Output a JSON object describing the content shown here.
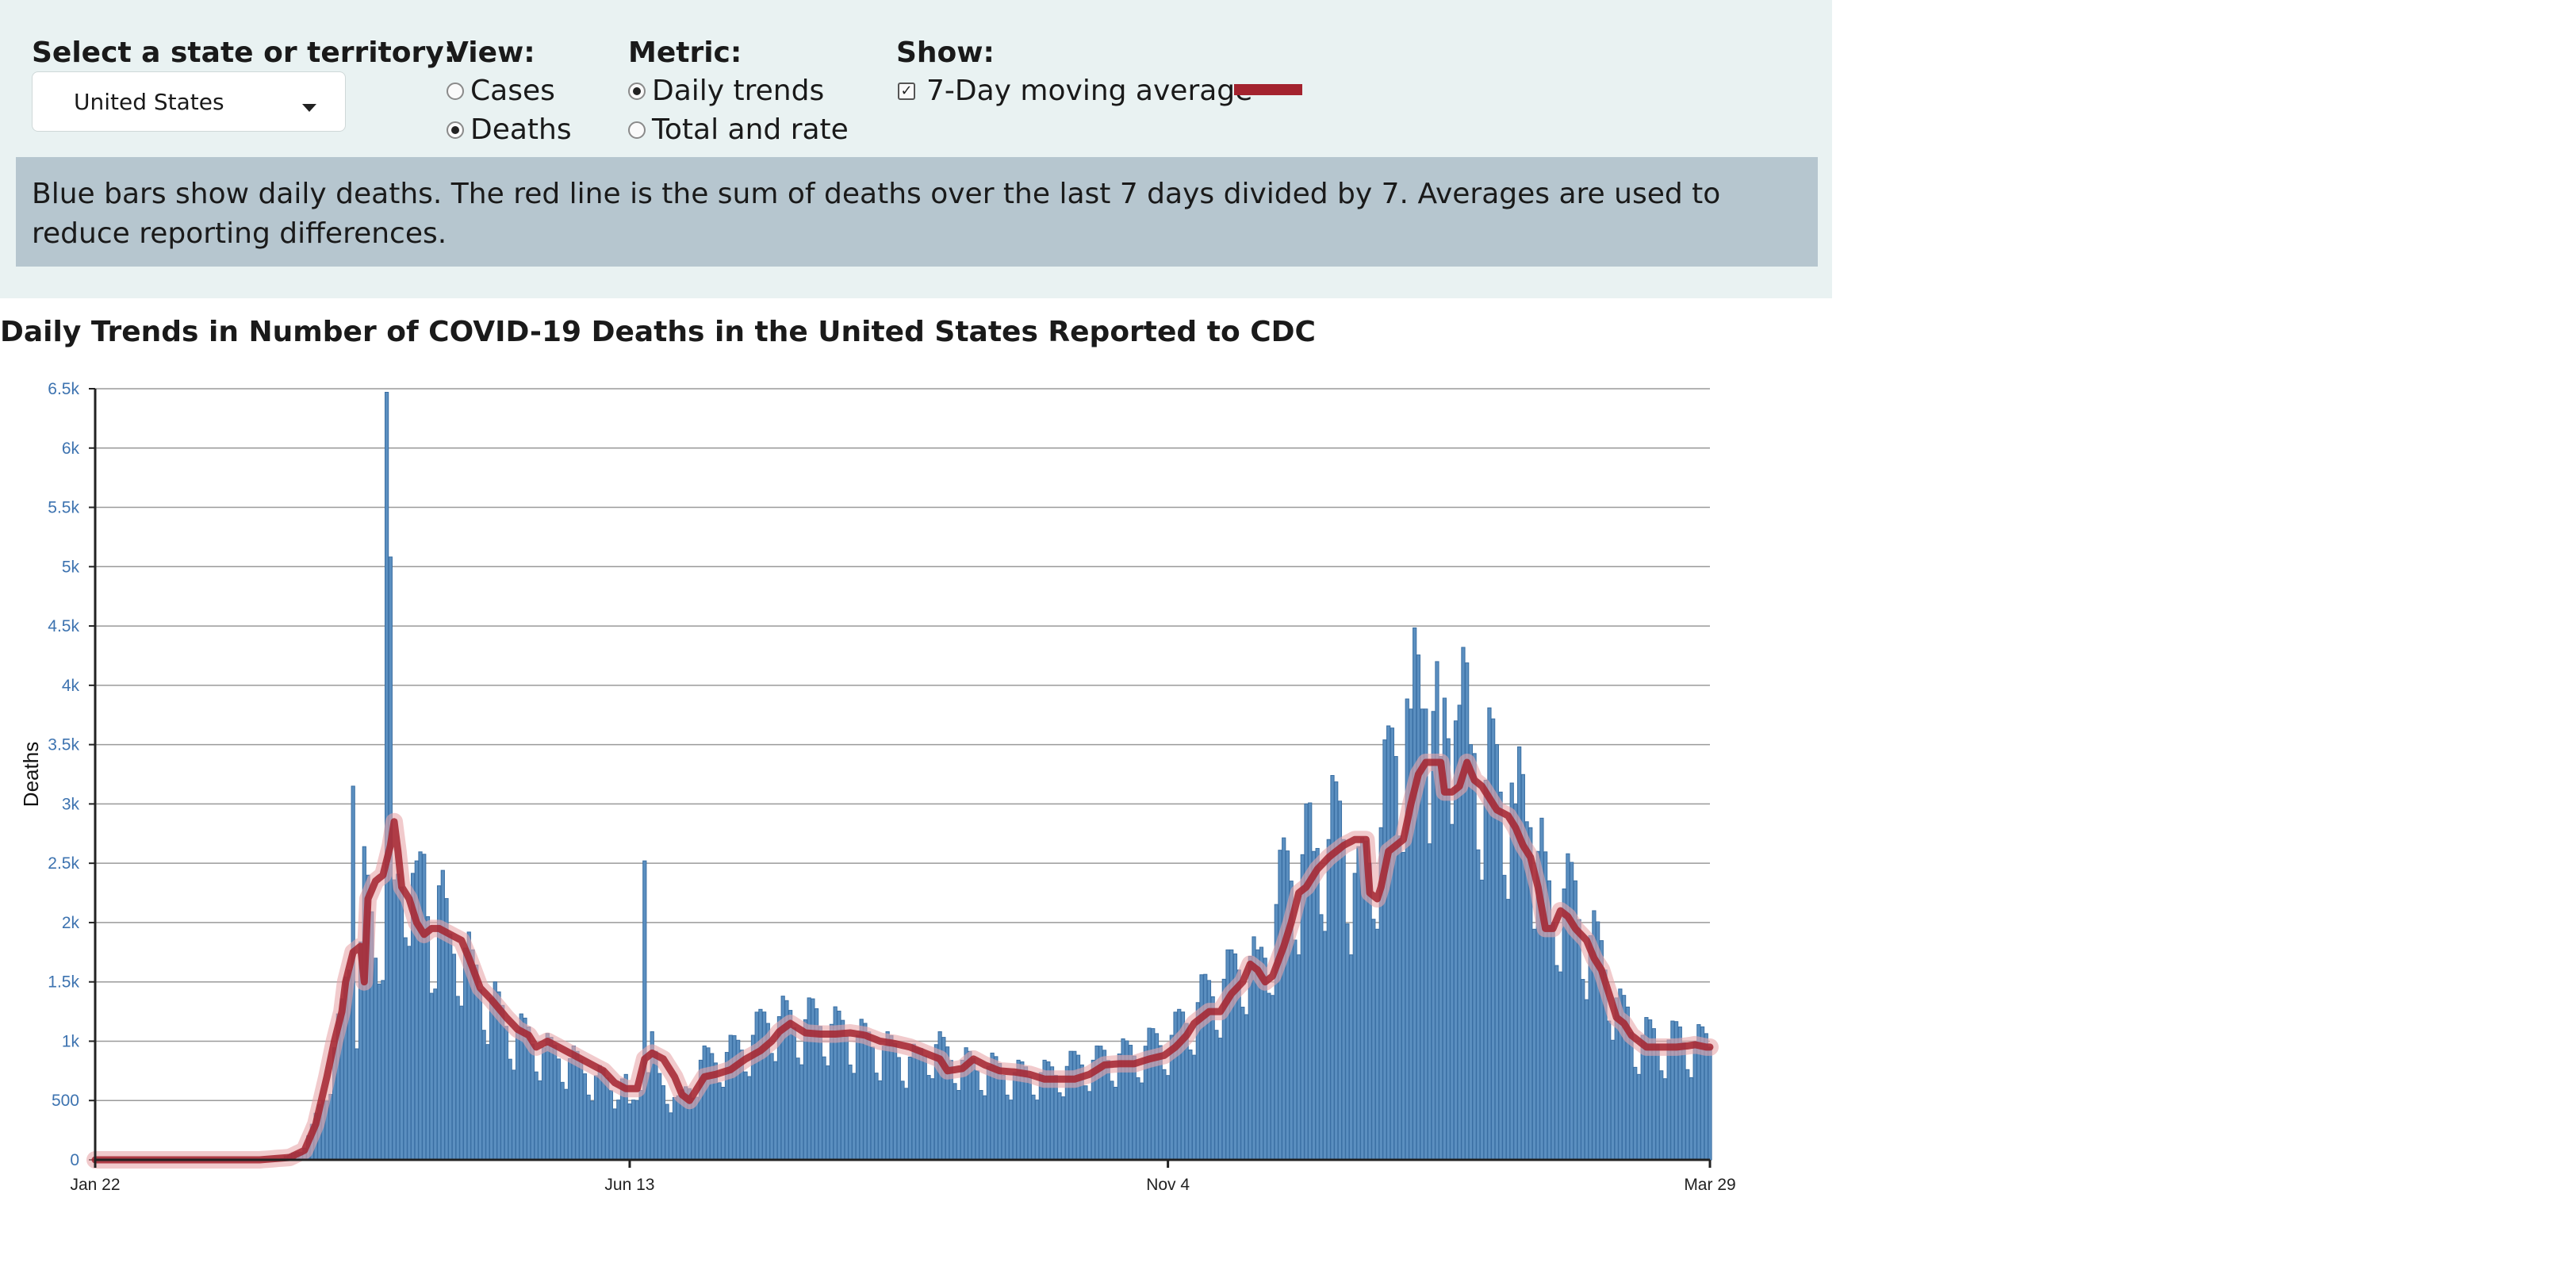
{
  "controls": {
    "state_label": "Select a state or territory:",
    "state_value": "United States",
    "view_label": "View:",
    "view_options": [
      "Cases",
      "Deaths"
    ],
    "view_selected": "Deaths",
    "metric_label": "Metric:",
    "metric_options": [
      "Daily trends",
      "Total and rate"
    ],
    "metric_selected": "Daily trends",
    "show_label": "Show:",
    "show_option": "7-Day moving average",
    "show_checked": true
  },
  "note": "Blue bars show daily deaths. The red line is the sum of deaths over the last 7 days divided by 7. Averages are used to reduce reporting differences.",
  "colors": {
    "bar": "#5b8fc0",
    "bar_stroke": "#3a6fa3",
    "line": "#a3232e",
    "line_halo": "#e8a6aa",
    "axis_text": "#3d73b0",
    "grid": "#9a9a9a",
    "panel": "#e9f2f2",
    "note_bg": "#b6c6cf"
  },
  "chart_data": {
    "type": "bar",
    "title": "Daily Trends in Number of COVID-19 Deaths in the United States Reported to CDC",
    "ylabel": "Deaths",
    "xlabel": "",
    "ylim": [
      0,
      6500
    ],
    "y_ticks": [
      0,
      500,
      1000,
      1500,
      2000,
      2500,
      3000,
      3500,
      4000,
      4500,
      5000,
      5500,
      6000,
      6500
    ],
    "y_tick_labels": [
      "0",
      "500",
      "1k",
      "1.5k",
      "2k",
      "2.5k",
      "3k",
      "3.5k",
      "4k",
      "4.5k",
      "5k",
      "5.5k",
      "6k",
      "6.5k"
    ],
    "x_start": "Jan 22",
    "x_end": "Mar 29",
    "x_ticks": [
      {
        "label": "Jan 22",
        "day": 0
      },
      {
        "label": "Jun 13",
        "day": 143
      },
      {
        "label": "Nov 4",
        "day": 287
      },
      {
        "label": "Mar 29",
        "day": 432
      }
    ],
    "grid": true,
    "series": [
      {
        "name": "Daily deaths",
        "type": "bar"
      },
      {
        "name": "7-Day moving average",
        "type": "line"
      }
    ],
    "deaths_keyframes": [
      [
        0,
        0
      ],
      [
        44,
        0
      ],
      [
        50,
        10
      ],
      [
        55,
        80
      ],
      [
        58,
        250
      ],
      [
        61,
        500
      ],
      [
        64,
        900
      ],
      [
        66,
        1150
      ],
      [
        68,
        1600
      ],
      [
        69,
        3150
      ],
      [
        70,
        1300
      ],
      [
        72,
        2200
      ],
      [
        75,
        1700
      ],
      [
        77,
        2100
      ],
      [
        78,
        6470
      ],
      [
        80,
        2000
      ],
      [
        82,
        2300
      ],
      [
        84,
        2500
      ],
      [
        86,
        2100
      ],
      [
        88,
        2300
      ],
      [
        90,
        1800
      ],
      [
        92,
        2200
      ],
      [
        95,
        1700
      ],
      [
        98,
        1800
      ],
      [
        101,
        1500
      ],
      [
        104,
        1400
      ],
      [
        108,
        1200
      ],
      [
        112,
        1050
      ],
      [
        116,
        1000
      ],
      [
        120,
        900
      ],
      [
        124,
        850
      ],
      [
        128,
        800
      ],
      [
        132,
        700
      ],
      [
        136,
        650
      ],
      [
        139,
        550
      ],
      [
        140,
        700
      ],
      [
        141,
        650
      ],
      [
        142,
        600
      ],
      [
        143,
        400
      ],
      [
        145,
        500
      ],
      [
        146,
        750
      ],
      [
        147,
        2520
      ],
      [
        148,
        700
      ],
      [
        149,
        900
      ],
      [
        151,
        650
      ],
      [
        153,
        600
      ],
      [
        156,
        450
      ],
      [
        159,
        600
      ],
      [
        162,
        800
      ],
      [
        165,
        800
      ],
      [
        168,
        850
      ],
      [
        172,
        900
      ],
      [
        176,
        1000
      ],
      [
        180,
        1150
      ],
      [
        184,
        1150
      ],
      [
        188,
        1100
      ],
      [
        192,
        1150
      ],
      [
        196,
        1100
      ],
      [
        200,
        1050
      ],
      [
        204,
        1000
      ],
      [
        208,
        950
      ],
      [
        212,
        900
      ],
      [
        216,
        850
      ],
      [
        220,
        800
      ],
      [
        224,
        950
      ],
      [
        228,
        850
      ],
      [
        232,
        800
      ],
      [
        236,
        750
      ],
      [
        240,
        750
      ],
      [
        244,
        700
      ],
      [
        248,
        700
      ],
      [
        252,
        700
      ],
      [
        256,
        700
      ],
      [
        260,
        750
      ],
      [
        264,
        800
      ],
      [
        268,
        800
      ],
      [
        272,
        850
      ],
      [
        276,
        850
      ],
      [
        280,
        900
      ],
      [
        284,
        950
      ],
      [
        288,
        1000
      ],
      [
        292,
        1150
      ],
      [
        296,
        1300
      ],
      [
        300,
        1400
      ],
      [
        304,
        1500
      ],
      [
        308,
        1700
      ],
      [
        311,
        1500
      ],
      [
        314,
        1800
      ],
      [
        318,
        2300
      ],
      [
        322,
        2400
      ],
      [
        326,
        2600
      ],
      [
        330,
        2700
      ],
      [
        334,
        2700
      ],
      [
        336,
        2400
      ],
      [
        338,
        2200
      ],
      [
        340,
        2400
      ],
      [
        344,
        2800
      ],
      [
        348,
        3400
      ],
      [
        352,
        3800
      ],
      [
        356,
        3800
      ],
      [
        360,
        3400
      ],
      [
        364,
        3700
      ],
      [
        368,
        3500
      ],
      [
        372,
        3200
      ],
      [
        376,
        3100
      ],
      [
        380,
        3000
      ],
      [
        384,
        2800
      ],
      [
        386,
        2600
      ],
      [
        388,
        2200
      ],
      [
        390,
        2000
      ],
      [
        392,
        2200
      ],
      [
        396,
        2100
      ],
      [
        400,
        1800
      ],
      [
        404,
        1600
      ],
      [
        408,
        1200
      ],
      [
        410,
        1150
      ],
      [
        412,
        1000
      ],
      [
        416,
        1000
      ],
      [
        420,
        950
      ],
      [
        424,
        1000
      ],
      [
        428,
        950
      ],
      [
        432,
        950
      ]
    ],
    "average_keyframes": [
      [
        0,
        0
      ],
      [
        44,
        0
      ],
      [
        52,
        20
      ],
      [
        56,
        80
      ],
      [
        59,
        300
      ],
      [
        62,
        700
      ],
      [
        64,
        1000
      ],
      [
        66,
        1250
      ],
      [
        67,
        1500
      ],
      [
        69,
        1750
      ],
      [
        71,
        1800
      ],
      [
        72,
        1500
      ],
      [
        73,
        2200
      ],
      [
        75,
        2350
      ],
      [
        77,
        2400
      ],
      [
        79,
        2650
      ],
      [
        80,
        2850
      ],
      [
        81,
        2600
      ],
      [
        82,
        2300
      ],
      [
        84,
        2200
      ],
      [
        86,
        2000
      ],
      [
        88,
        1900
      ],
      [
        90,
        1950
      ],
      [
        92,
        1950
      ],
      [
        95,
        1900
      ],
      [
        98,
        1850
      ],
      [
        100,
        1700
      ],
      [
        103,
        1450
      ],
      [
        106,
        1350
      ],
      [
        110,
        1200
      ],
      [
        113,
        1100
      ],
      [
        116,
        1050
      ],
      [
        118,
        950
      ],
      [
        121,
        1000
      ],
      [
        124,
        950
      ],
      [
        127,
        900
      ],
      [
        130,
        850
      ],
      [
        133,
        800
      ],
      [
        136,
        750
      ],
      [
        139,
        650
      ],
      [
        142,
        600
      ],
      [
        145,
        600
      ],
      [
        147,
        850
      ],
      [
        149,
        900
      ],
      [
        152,
        850
      ],
      [
        155,
        700
      ],
      [
        157,
        550
      ],
      [
        159,
        500
      ],
      [
        161,
        600
      ],
      [
        163,
        700
      ],
      [
        166,
        720
      ],
      [
        170,
        760
      ],
      [
        174,
        850
      ],
      [
        178,
        920
      ],
      [
        181,
        1000
      ],
      [
        183,
        1080
      ],
      [
        186,
        1150
      ],
      [
        190,
        1070
      ],
      [
        194,
        1060
      ],
      [
        198,
        1060
      ],
      [
        202,
        1070
      ],
      [
        206,
        1050
      ],
      [
        210,
        1000
      ],
      [
        214,
        980
      ],
      [
        218,
        950
      ],
      [
        222,
        900
      ],
      [
        226,
        850
      ],
      [
        228,
        750
      ],
      [
        232,
        770
      ],
      [
        235,
        850
      ],
      [
        238,
        800
      ],
      [
        242,
        750
      ],
      [
        246,
        740
      ],
      [
        250,
        720
      ],
      [
        254,
        680
      ],
      [
        258,
        680
      ],
      [
        262,
        680
      ],
      [
        266,
        720
      ],
      [
        270,
        800
      ],
      [
        274,
        810
      ],
      [
        278,
        810
      ],
      [
        282,
        850
      ],
      [
        286,
        880
      ],
      [
        289,
        950
      ],
      [
        292,
        1050
      ],
      [
        294,
        1150
      ],
      [
        298,
        1250
      ],
      [
        301,
        1250
      ],
      [
        304,
        1400
      ],
      [
        307,
        1500
      ],
      [
        309,
        1650
      ],
      [
        311,
        1600
      ],
      [
        313,
        1500
      ],
      [
        315,
        1550
      ],
      [
        318,
        1800
      ],
      [
        320,
        2000
      ],
      [
        322,
        2250
      ],
      [
        324,
        2300
      ],
      [
        327,
        2450
      ],
      [
        330,
        2550
      ],
      [
        334,
        2650
      ],
      [
        337,
        2700
      ],
      [
        340,
        2700
      ],
      [
        341,
        2250
      ],
      [
        343,
        2200
      ],
      [
        344,
        2300
      ],
      [
        346,
        2600
      ],
      [
        348,
        2650
      ],
      [
        350,
        2700
      ],
      [
        352,
        3000
      ],
      [
        354,
        3250
      ],
      [
        356,
        3350
      ],
      [
        358,
        3350
      ],
      [
        360,
        3350
      ],
      [
        361,
        3100
      ],
      [
        363,
        3100
      ],
      [
        365,
        3150
      ],
      [
        367,
        3350
      ],
      [
        369,
        3200
      ],
      [
        371,
        3150
      ],
      [
        373,
        3050
      ],
      [
        375,
        2950
      ],
      [
        378,
        2900
      ],
      [
        380,
        2800
      ],
      [
        382,
        2650
      ],
      [
        384,
        2550
      ],
      [
        386,
        2300
      ],
      [
        388,
        1950
      ],
      [
        390,
        1950
      ],
      [
        392,
        2100
      ],
      [
        394,
        2050
      ],
      [
        396,
        1950
      ],
      [
        399,
        1850
      ],
      [
        401,
        1700
      ],
      [
        403,
        1600
      ],
      [
        405,
        1400
      ],
      [
        407,
        1200
      ],
      [
        409,
        1150
      ],
      [
        411,
        1050
      ],
      [
        413,
        1000
      ],
      [
        415,
        950
      ],
      [
        418,
        950
      ],
      [
        420,
        950
      ],
      [
        423,
        950
      ],
      [
        426,
        960
      ],
      [
        428,
        970
      ],
      [
        431,
        950
      ]
    ]
  }
}
